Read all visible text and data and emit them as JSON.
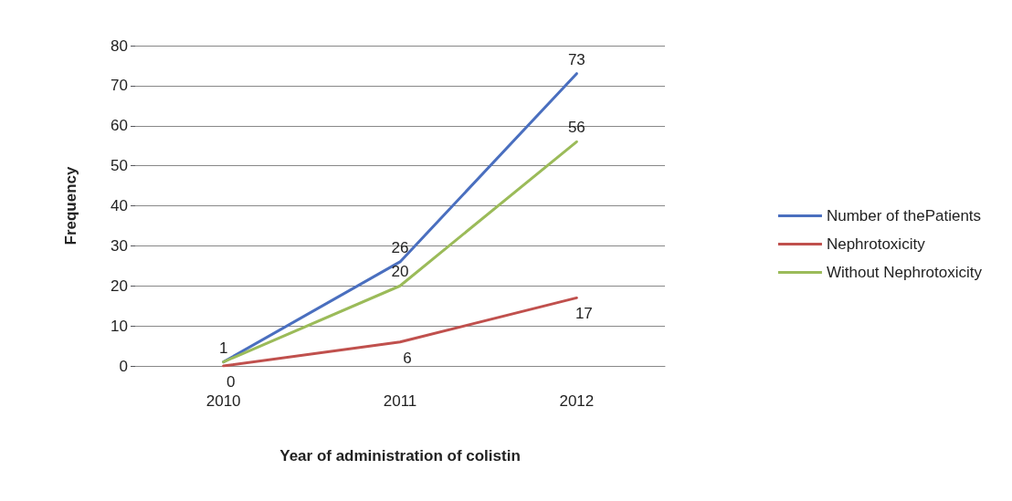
{
  "chart_data": {
    "type": "line",
    "xlabel": "Year of administration of colistin",
    "ylabel": "Frequency",
    "categories": [
      "2010",
      "2011",
      "2012"
    ],
    "ylim": [
      0,
      80
    ],
    "yticks": [
      0,
      10,
      20,
      30,
      40,
      50,
      60,
      70,
      80
    ],
    "grid": "y",
    "legend": "right",
    "marker": "none",
    "line_style": "solid",
    "series": [
      {
        "name": "Number of thePatients",
        "color": "#4a6fbf",
        "values": [
          1,
          26,
          73
        ],
        "value_labels": [
          "1",
          "26",
          "73"
        ]
      },
      {
        "name": "Nephrotoxicity",
        "color": "#c0504d",
        "values": [
          0,
          6,
          17
        ],
        "value_labels": [
          "0",
          "6",
          "17"
        ]
      },
      {
        "name": "Without Nephrotoxicity",
        "color": "#9bbb59",
        "values": [
          1,
          20,
          56
        ],
        "value_labels": [
          null,
          "20",
          "56"
        ]
      }
    ]
  }
}
